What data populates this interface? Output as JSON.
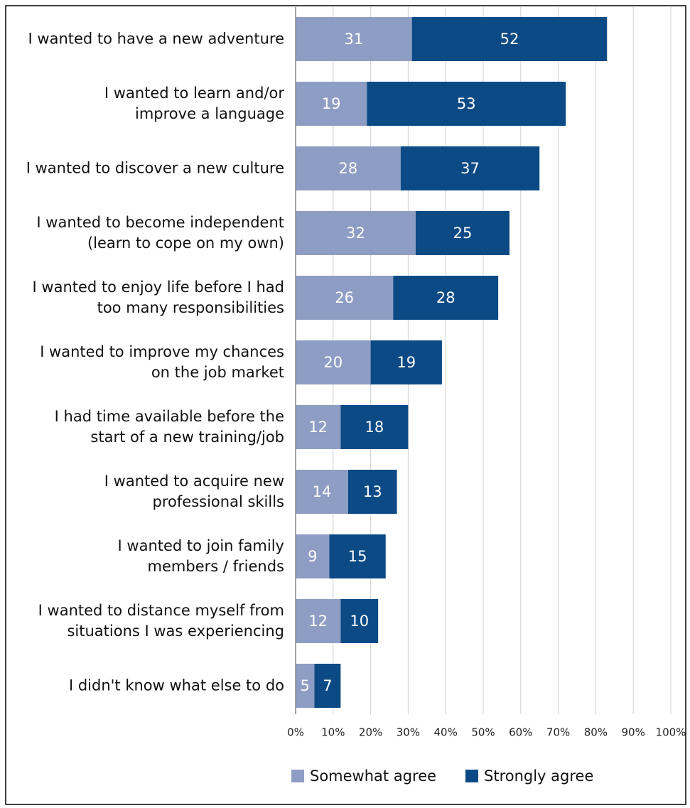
{
  "chart_data": {
    "type": "stacked_barh",
    "categories": [
      "I wanted to have a new adventure",
      "I wanted to learn and/or\nimprove a language",
      "I wanted to discover a new culture",
      "I wanted to become independent\n(learn to cope on my own)",
      "I wanted to enjoy life before I had\ntoo many responsibilities",
      "I wanted to improve my chances\non the job market",
      "I had time available before the\nstart of a new training/job",
      "I wanted to acquire new\nprofessional skills",
      "I wanted to join family\nmembers / friends",
      "I wanted to distance myself from\nsituations I was experiencing",
      "I didn't know what else to do"
    ],
    "series": [
      {
        "name": "Somewhat agree",
        "color": "#8e9dc4",
        "values": [
          31,
          19,
          28,
          32,
          26,
          20,
          12,
          14,
          9,
          12,
          5
        ]
      },
      {
        "name": "Strongly agree",
        "color": "#0b4a85",
        "values": [
          52,
          53,
          37,
          25,
          28,
          19,
          18,
          13,
          15,
          10,
          7
        ]
      }
    ],
    "xlim": [
      0,
      100
    ],
    "xticks": [
      {
        "value": 0,
        "label": "0%"
      },
      {
        "value": 10,
        "label": "10%"
      },
      {
        "value": 20,
        "label": "20%"
      },
      {
        "value": 30,
        "label": "30%"
      },
      {
        "value": 40,
        "label": "40%"
      },
      {
        "value": 50,
        "label": "50%"
      },
      {
        "value": 60,
        "label": "60%"
      },
      {
        "value": 70,
        "label": "70%"
      },
      {
        "value": 80,
        "label": "80%"
      },
      {
        "value": 90,
        "label": "90%"
      },
      {
        "value": 100,
        "label": "100%"
      }
    ],
    "grid": true,
    "legend": "bottom"
  }
}
